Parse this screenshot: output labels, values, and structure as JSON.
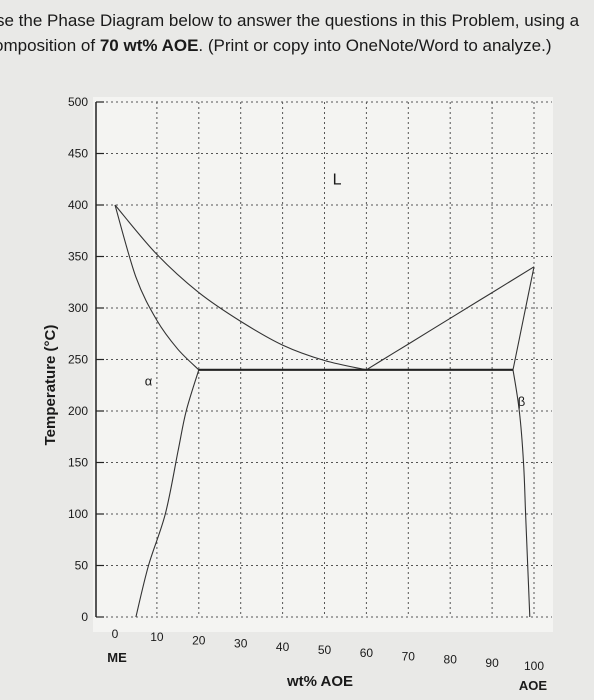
{
  "instructions": {
    "line1": "se the Phase Diagram below to answer the questions in this Problem, using a",
    "line2_pre": "omposition of ",
    "line2_bold": "70 wt% AOE",
    "line2_post": ". (Print or copy into OneNote/Word to analyze.)"
  },
  "chart_data": {
    "type": "phase-diagram",
    "xlabel": "wt% AOE",
    "ylabel": "Temperature (°C)",
    "xlim": [
      0,
      100
    ],
    "ylim": [
      0,
      500
    ],
    "x_ticks": [
      0,
      10,
      20,
      30,
      40,
      50,
      60,
      70,
      80,
      90,
      100
    ],
    "y_ticks": [
      0,
      50,
      100,
      150,
      200,
      250,
      300,
      350,
      400,
      450,
      500
    ],
    "x_tick_labels": [
      "0",
      "10",
      "20",
      "30",
      "40",
      "50",
      "60",
      "70",
      "80",
      "90",
      "100"
    ],
    "y_tick_labels": [
      "0",
      "50",
      "100",
      "150",
      "200",
      "250",
      "300",
      "350",
      "400",
      "450",
      "500"
    ],
    "left_component": "ME",
    "right_component": "AOE",
    "melting_point_ME": 400,
    "melting_point_AOE": 340,
    "eutectic": {
      "composition": 60,
      "temperature": 240
    },
    "eutectic_isotherm": {
      "from": 20,
      "to": 95,
      "temperature": 240
    },
    "regions": [
      {
        "label": "L",
        "x": 53,
        "y": 420
      },
      {
        "label": "α",
        "x": 8,
        "y": 225
      },
      {
        "label": "β",
        "x": 97,
        "y": 205
      }
    ],
    "curves": {
      "alpha_liquidus": [
        [
          0,
          400
        ],
        [
          10,
          352
        ],
        [
          20,
          315
        ],
        [
          30,
          287
        ],
        [
          40,
          264
        ],
        [
          50,
          249
        ],
        [
          60,
          240
        ]
      ],
      "alpha_solidus": [
        [
          0,
          400
        ],
        [
          5,
          330
        ],
        [
          10,
          288
        ],
        [
          15,
          260
        ],
        [
          20,
          240
        ]
      ],
      "alpha_solvus": [
        [
          20,
          240
        ],
        [
          17,
          200
        ],
        [
          15,
          160
        ],
        [
          12,
          100
        ],
        [
          8,
          50
        ],
        [
          5,
          0
        ]
      ],
      "beta_liquidus": [
        [
          60,
          240
        ],
        [
          70,
          265
        ],
        [
          80,
          290
        ],
        [
          90,
          315
        ],
        [
          100,
          340
        ]
      ],
      "beta_solidus": [
        [
          95,
          240
        ],
        [
          97.5,
          290
        ],
        [
          100,
          340
        ]
      ],
      "beta_solvus": [
        [
          95,
          240
        ],
        [
          96.5,
          200
        ],
        [
          97.5,
          150
        ],
        [
          98,
          100
        ],
        [
          98.5,
          50
        ],
        [
          99,
          0
        ]
      ]
    },
    "grid": "dotted"
  }
}
